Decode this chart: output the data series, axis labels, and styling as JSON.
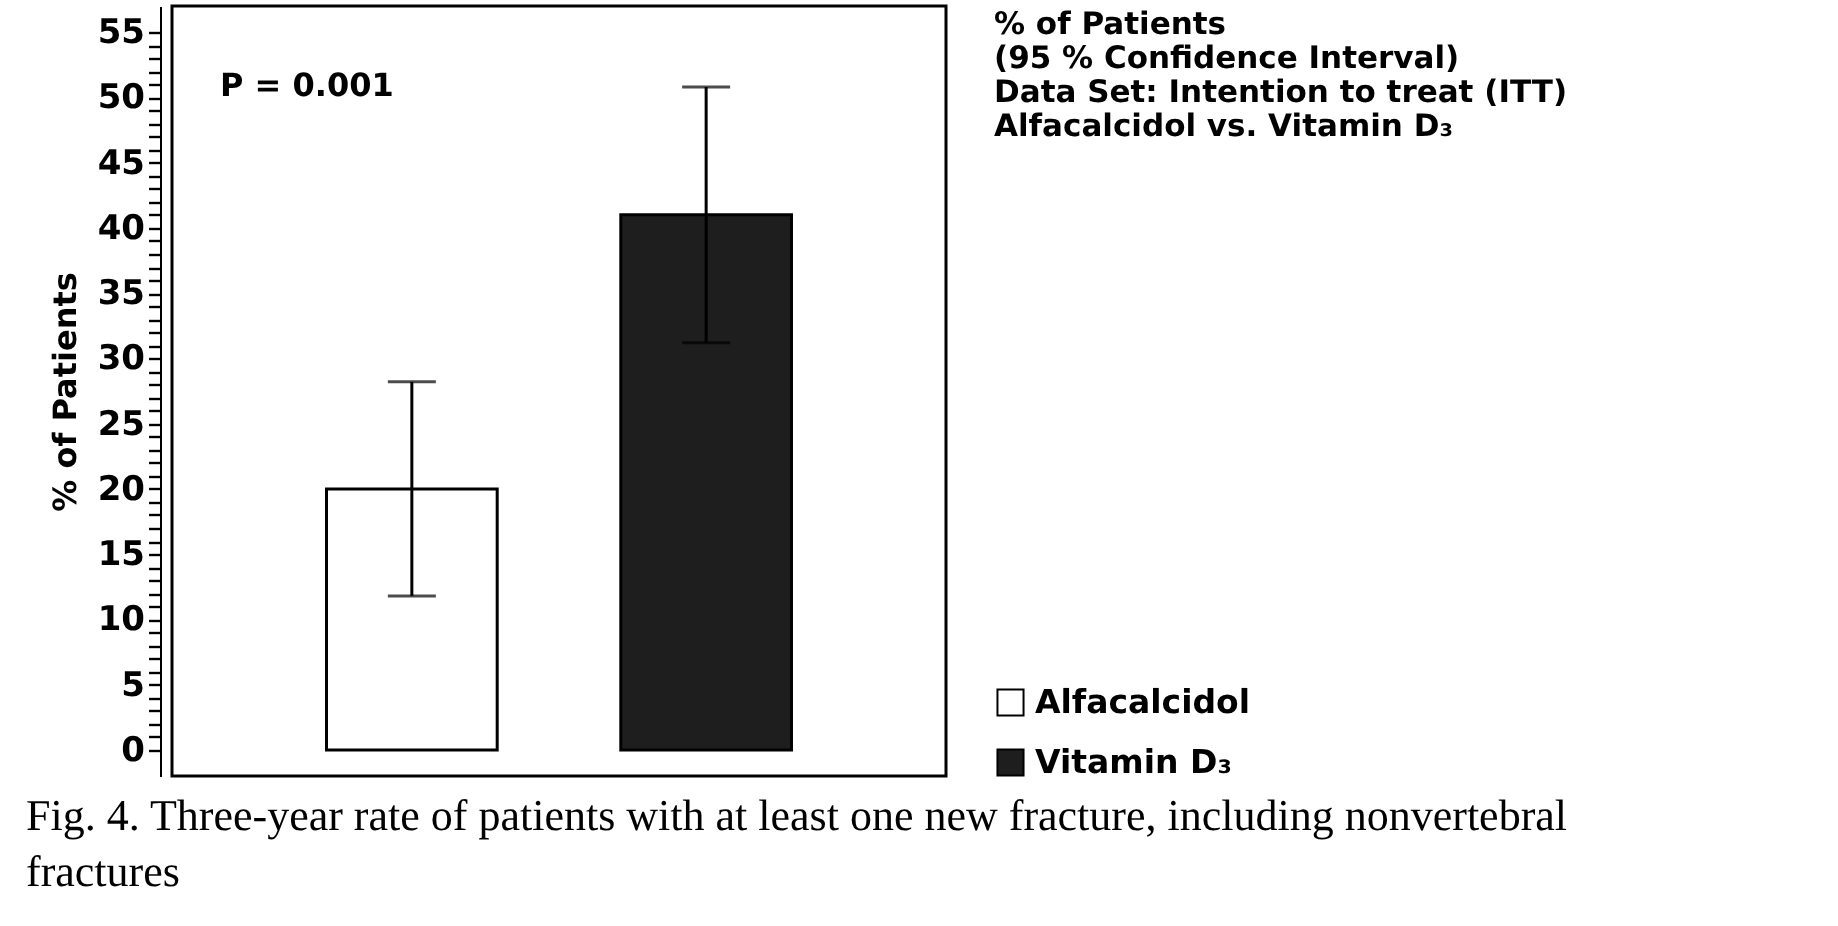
{
  "chart_data": {
    "type": "bar",
    "categories": [
      null
    ],
    "series": [
      {
        "name": "Alfacalcidol",
        "color": "#ffffff",
        "values": [
          20
        ],
        "errors": [
          8.2
        ]
      },
      {
        "name": "Vitamin D₃",
        "color": "#1e1e1e",
        "values": [
          41
        ],
        "errors": [
          9.8
        ]
      }
    ],
    "ylabel": "% of Patients",
    "ylim": [
      -2,
      57
    ],
    "yticks": [
      0,
      {
        "value": 1,
        "label": null
      },
      {
        "value": 2,
        "label": null
      },
      {
        "value": 3,
        "label": null
      },
      {
        "value": 4,
        "label": null
      },
      5,
      {
        "value": 6,
        "label": null
      },
      {
        "value": 7,
        "label": null
      },
      {
        "value": 8,
        "label": null
      },
      {
        "value": 9,
        "label": null
      },
      10,
      {
        "value": 11,
        "label": null
      },
      {
        "value": 12,
        "label": null
      },
      {
        "value": 13,
        "label": null
      },
      {
        "value": 14,
        "label": null
      },
      15,
      {
        "value": 16,
        "label": null
      },
      {
        "value": 17,
        "label": null
      },
      {
        "value": 18,
        "label": null
      },
      {
        "value": 19,
        "label": null
      },
      20,
      {
        "value": 21,
        "label": null
      },
      {
        "value": 22,
        "label": null
      },
      {
        "value": 23,
        "label": null
      },
      {
        "value": 24,
        "label": null
      },
      25,
      {
        "value": 26,
        "label": null
      },
      {
        "value": 27,
        "label": null
      },
      {
        "value": 28,
        "label": null
      },
      {
        "value": 29,
        "label": null
      },
      30,
      {
        "value": 31,
        "label": null
      },
      {
        "value": 32,
        "label": null
      },
      {
        "value": 33,
        "label": null
      },
      {
        "value": 34,
        "label": null
      },
      35,
      {
        "value": 36,
        "label": null
      },
      {
        "value": 37,
        "label": null
      },
      {
        "value": 38,
        "label": null
      },
      {
        "value": 39,
        "label": null
      },
      40,
      {
        "value": 41,
        "label": null
      },
      {
        "value": 42,
        "label": null
      },
      {
        "value": 43,
        "label": null
      },
      {
        "value": 44,
        "label": null
      },
      45,
      {
        "value": 46,
        "label": null
      },
      {
        "value": 47,
        "label": null
      },
      {
        "value": 48,
        "label": null
      },
      {
        "value": 49,
        "label": null
      },
      50,
      {
        "value": 51,
        "label": null
      },
      {
        "value": 52,
        "label": null
      },
      {
        "value": 53,
        "label": null
      },
      {
        "value": 54,
        "label": null
      },
      55
    ],
    "legend": "bottom right",
    "grid": false,
    "annotations": [
      "P = 0.001",
      "% of Patients",
      "(95 % Confidence Interval)",
      "Data Set: Intention to treat (ITT)",
      "Alfacalcidol vs. Vitamin D₃",
      "Fig. 4.  Three-year rate of patients with at least one new fracture, including nonvertebral fractures"
    ]
  }
}
